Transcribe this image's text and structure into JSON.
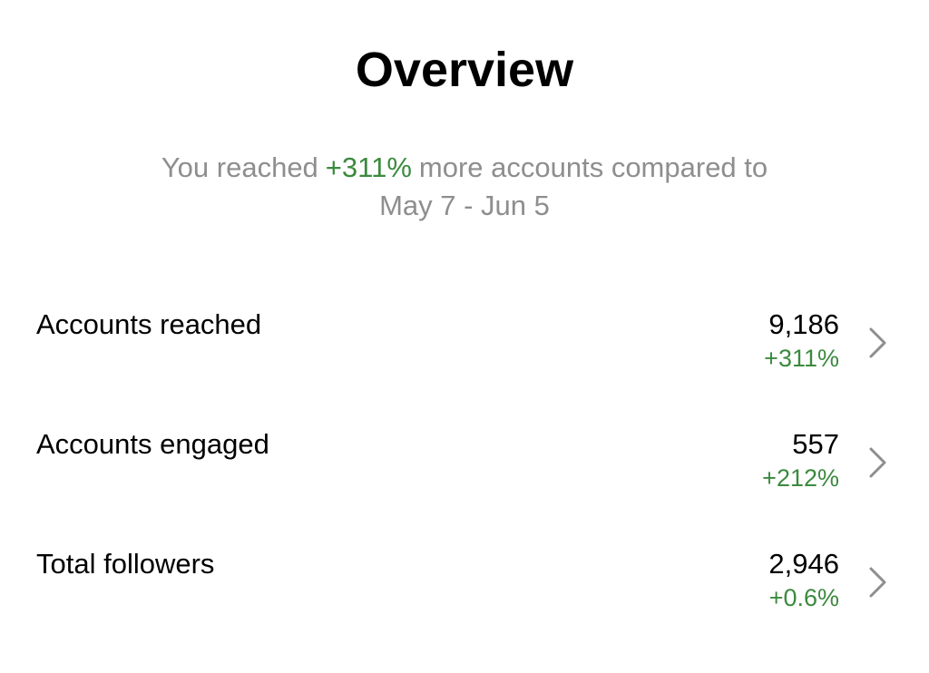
{
  "header": {
    "title": "Overview"
  },
  "summary": {
    "before": "You reached",
    "highlight": "+311%",
    "after": "more accounts compared to",
    "period": "May 7 - Jun 5"
  },
  "rows": [
    {
      "label": "Accounts reached",
      "value": "9,186",
      "change": "+311%"
    },
    {
      "label": "Accounts engaged",
      "value": "557",
      "change": "+212%"
    },
    {
      "label": "Total followers",
      "value": "2,946",
      "change": "+0.6%"
    }
  ]
}
